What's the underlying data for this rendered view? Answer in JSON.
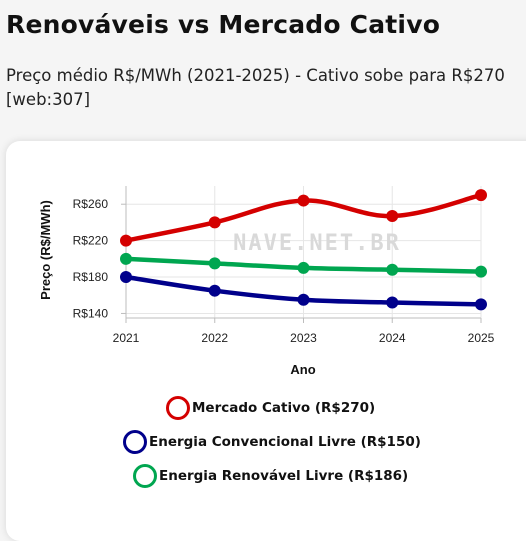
{
  "header": {
    "title": "Renováveis vs Mercado Cativo",
    "subtitle": "Preço médio R$/MWh (2021-2025) - Cativo sobe para R$270 [web:307]"
  },
  "watermark": "NAVE.NET.BR",
  "chart_data": {
    "type": "line",
    "xlabel": "Ano",
    "ylabel": "Preço (R$/MWh)",
    "x": [
      "2021",
      "2022",
      "2023",
      "2024",
      "2025"
    ],
    "ylim": [
      135,
      280
    ],
    "yticks": [
      140,
      180,
      220,
      260
    ],
    "ytick_labels": [
      "R$140",
      "R$180",
      "R$220",
      "R$260"
    ],
    "grid": true,
    "legend_position": "bottom",
    "series": [
      {
        "name": "Mercado Cativo (R$270)",
        "color": "#d40000",
        "values": [
          220,
          240,
          264,
          247,
          270
        ]
      },
      {
        "name": "Energia Convencional Livre (R$150)",
        "color": "#00008b",
        "values": [
          180,
          165,
          155,
          152,
          150
        ]
      },
      {
        "name": "Energia Renovável Livre (R$186)",
        "color": "#00a650",
        "values": [
          200,
          195,
          190,
          188,
          186
        ]
      }
    ]
  }
}
